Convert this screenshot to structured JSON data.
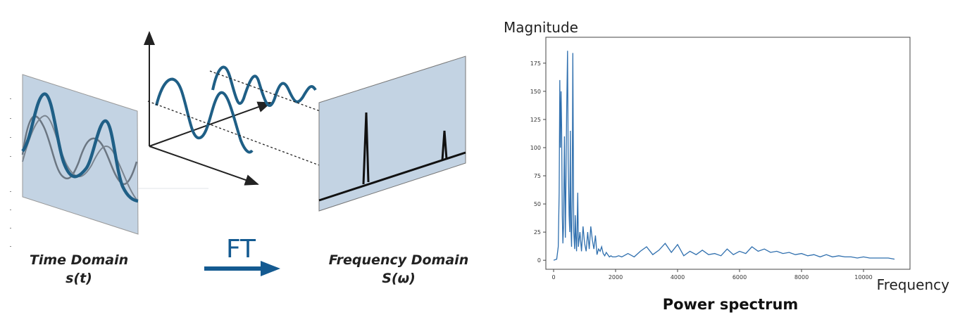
{
  "diagram": {
    "time_domain_title": "Time Domain",
    "time_domain_formula": "s(t)",
    "transform_label": "FT",
    "frequency_domain_title": "Frequency Domain",
    "frequency_domain_formula": "S(ω)",
    "colors": {
      "panel_fill": "#c3d3e3",
      "wave_dark": "#1f5f86",
      "wave_gray": "#6b7682",
      "arrow_blue": "#145a91"
    }
  },
  "chart_data": {
    "type": "line",
    "title": "Power spectrum",
    "xlabel": "Frequency",
    "ylabel": "Magnitude",
    "xlim": [
      -250,
      11500
    ],
    "ylim": [
      -8,
      198
    ],
    "xticks": [
      0,
      2000,
      4000,
      6000,
      8000,
      10000
    ],
    "yticks": [
      0,
      25,
      50,
      75,
      100,
      125,
      150,
      175
    ],
    "grid": false,
    "series": [
      {
        "color": "#2f6fae",
        "x": [
          0,
          100,
          150,
          180,
          200,
          220,
          240,
          260,
          280,
          300,
          320,
          350,
          380,
          400,
          420,
          450,
          470,
          500,
          520,
          540,
          560,
          580,
          600,
          620,
          650,
          680,
          700,
          720,
          740,
          760,
          780,
          800,
          850,
          900,
          950,
          1000,
          1050,
          1100,
          1150,
          1200,
          1250,
          1300,
          1350,
          1400,
          1450,
          1500,
          1550,
          1600,
          1650,
          1700,
          1750,
          1800,
          1850,
          1900,
          2000,
          2100,
          2200,
          2400,
          2600,
          2800,
          3000,
          3200,
          3400,
          3600,
          3800,
          4000,
          4200,
          4400,
          4600,
          4800,
          5000,
          5200,
          5400,
          5600,
          5800,
          6000,
          6200,
          6400,
          6600,
          6800,
          7000,
          7200,
          7400,
          7600,
          7800,
          8000,
          8200,
          8400,
          8600,
          8800,
          9000,
          9200,
          9400,
          9600,
          9800,
          10000,
          10200,
          10400,
          10600,
          10800,
          11000
        ],
        "values": [
          0,
          1,
          12,
          60,
          160,
          100,
          150,
          118,
          40,
          15,
          30,
          110,
          20,
          70,
          130,
          186,
          90,
          40,
          25,
          115,
          30,
          12,
          55,
          184,
          25,
          10,
          40,
          20,
          8,
          30,
          60,
          12,
          25,
          8,
          30,
          15,
          8,
          25,
          10,
          30,
          18,
          10,
          22,
          5,
          10,
          8,
          12,
          6,
          4,
          7,
          5,
          3,
          4,
          3,
          3,
          4,
          3,
          6,
          3,
          8,
          12,
          5,
          9,
          15,
          7,
          14,
          4,
          8,
          5,
          9,
          5,
          6,
          4,
          10,
          5,
          8,
          6,
          12,
          8,
          10,
          7,
          8,
          6,
          7,
          5,
          6,
          4,
          5,
          3,
          5,
          3,
          4,
          3,
          3,
          2,
          3,
          2,
          2,
          2,
          2,
          1
        ]
      }
    ]
  }
}
